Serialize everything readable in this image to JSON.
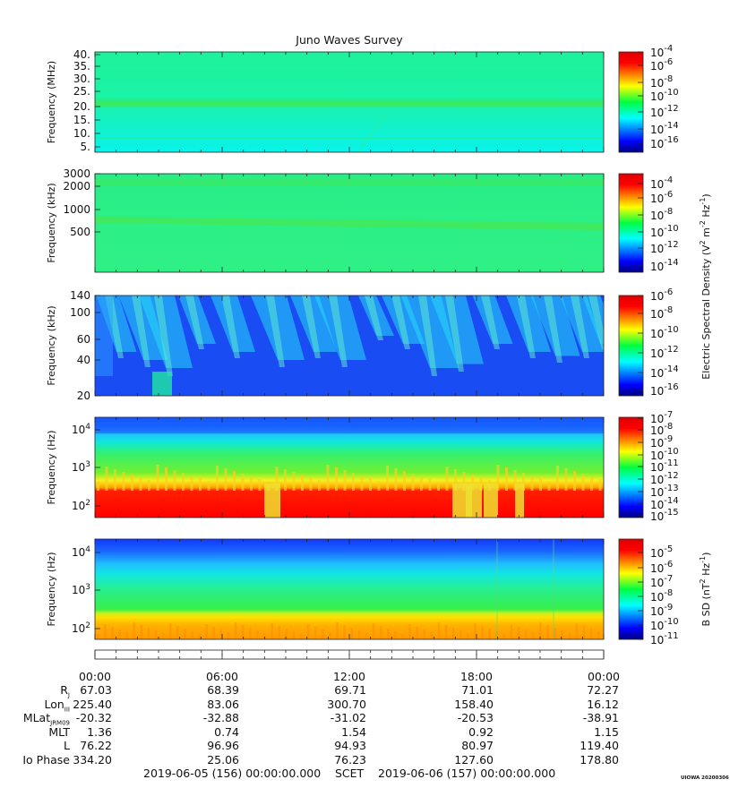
{
  "title": "Juno Waves Survey",
  "panels": [
    {
      "id": "p1",
      "ylabel": "Frequency (MHz)",
      "yticks": [
        "40.",
        "35.",
        "30.",
        "25.",
        "20.",
        "15.",
        "10.",
        "5."
      ],
      "cbar_ticks": [
        {
          "base": "10",
          "exp": "-4"
        },
        {
          "base": "10",
          "exp": "-6"
        },
        {
          "base": "10",
          "exp": "-8"
        },
        {
          "base": "10",
          "exp": "-10"
        },
        {
          "base": "10",
          "exp": "-12"
        },
        {
          "base": "10",
          "exp": "-14"
        },
        {
          "base": "10",
          "exp": "-16"
        }
      ]
    },
    {
      "id": "p2",
      "ylabel": "Frequency (kHz)",
      "yticks": [
        "3000",
        "2000",
        "1000",
        "500"
      ],
      "cbar_ticks": [
        {
          "base": "10",
          "exp": "-4"
        },
        {
          "base": "10",
          "exp": "-6"
        },
        {
          "base": "10",
          "exp": "-8"
        },
        {
          "base": "10",
          "exp": "-10"
        },
        {
          "base": "10",
          "exp": "-12"
        },
        {
          "base": "10",
          "exp": "-14"
        }
      ]
    },
    {
      "id": "p3",
      "ylabel": "Frequency (kHz)",
      "yticks": [
        "140",
        "100",
        "60",
        "40",
        "20"
      ],
      "cbar_ticks": [
        {
          "base": "10",
          "exp": "-6"
        },
        {
          "base": "10",
          "exp": "-8"
        },
        {
          "base": "10",
          "exp": "-10"
        },
        {
          "base": "10",
          "exp": "-12"
        },
        {
          "base": "10",
          "exp": "-14"
        },
        {
          "base": "10",
          "exp": "-16"
        }
      ]
    },
    {
      "id": "p4",
      "ylabel": "Frequency (Hz)",
      "yticks": [
        {
          "base": "10",
          "exp": "4"
        },
        {
          "base": "10",
          "exp": "3"
        },
        {
          "base": "10",
          "exp": "2"
        }
      ],
      "cbar_ticks": [
        {
          "base": "10",
          "exp": "-7"
        },
        {
          "base": "10",
          "exp": "-8"
        },
        {
          "base": "10",
          "exp": "-9"
        },
        {
          "base": "10",
          "exp": "-10"
        },
        {
          "base": "10",
          "exp": "-11"
        },
        {
          "base": "10",
          "exp": "-12"
        },
        {
          "base": "10",
          "exp": "-13"
        },
        {
          "base": "10",
          "exp": "-14"
        },
        {
          "base": "10",
          "exp": "-15"
        }
      ]
    },
    {
      "id": "p5",
      "ylabel": "Frequency (Hz)",
      "yticks": [
        {
          "base": "10",
          "exp": "4"
        },
        {
          "base": "10",
          "exp": "3"
        },
        {
          "base": "10",
          "exp": "2"
        }
      ],
      "cbar_ticks": [
        {
          "base": "10",
          "exp": "-5"
        },
        {
          "base": "10",
          "exp": "-6"
        },
        {
          "base": "10",
          "exp": "-7"
        },
        {
          "base": "10",
          "exp": "-8"
        },
        {
          "base": "10",
          "exp": "-9"
        },
        {
          "base": "10",
          "exp": "-10"
        },
        {
          "base": "10",
          "exp": "-11"
        }
      ]
    }
  ],
  "cbar_label_e": {
    "parts": [
      "Electric Spectral Density (V",
      "2",
      " m",
      "-2",
      " Hz",
      "-1",
      ")"
    ]
  },
  "cbar_label_b": {
    "parts": [
      "B SD (nT",
      "2",
      " Hz",
      "-1",
      ")"
    ]
  },
  "ephemeris": {
    "times": [
      "00:00",
      "06:00",
      "12:00",
      "18:00",
      "00:00"
    ],
    "rows": [
      {
        "label": "R",
        "sub": "J",
        "values": [
          "67.03",
          "68.39",
          "69.71",
          "71.01",
          "72.27"
        ]
      },
      {
        "label": "Lon",
        "sub": "III",
        "values": [
          "225.40",
          "83.06",
          "300.70",
          "158.40",
          "16.12"
        ]
      },
      {
        "label": "MLat",
        "sub": "JRM09",
        "values": [
          "-20.32",
          "-32.88",
          "-31.02",
          "-20.53",
          "-38.91"
        ]
      },
      {
        "label": "MLT",
        "sub": "",
        "values": [
          "1.36",
          "0.74",
          "1.54",
          "0.92",
          "1.15"
        ]
      },
      {
        "label": "L",
        "sub": "",
        "values": [
          "76.22",
          "96.96",
          "94.93",
          "80.97",
          "119.40"
        ]
      },
      {
        "label": "Io Phase",
        "sub": "",
        "values": [
          "334.20",
          "25.06",
          "76.23",
          "127.60",
          "178.80"
        ]
      }
    ]
  },
  "footer": {
    "start": "2019-06-05 (156) 00:00:00.000",
    "mid": "SCET",
    "end": "2019-06-06 (157) 00:00:00.000"
  },
  "stamp": "UIOWA 20200306",
  "chart_data": [
    {
      "type": "heatmap",
      "title": "Juno Waves Survey",
      "ylabel": "Frequency (MHz)",
      "ylim": [
        3,
        41
      ],
      "colorbar_range_log10": [
        -17,
        -4
      ],
      "features": [
        {
          "freq": 21,
          "intensity_log10": -12
        },
        {
          "freq": 8.5,
          "intensity_log10": -13
        }
      ],
      "background_log10": -13.5
    },
    {
      "type": "heatmap",
      "ylabel": "Frequency (kHz)",
      "yscale": "log",
      "ylim": [
        140,
        3000
      ],
      "colorbar_range_log10": [
        -15,
        -4
      ],
      "features": [
        {
          "freq": 2200,
          "intensity_log10": -10.5
        },
        {
          "freq": 700,
          "intensity_log10": -10
        }
      ],
      "background_log10": -11.5
    },
    {
      "type": "heatmap",
      "ylabel": "Frequency (kHz)",
      "ylim": [
        20,
        140
      ],
      "colorbar_range_log10": [
        -16,
        -6
      ],
      "background_log10": -14,
      "features": [
        {
          "freq": "40-140",
          "intensity_log10": -12.5,
          "note": "sporadic diagonal bursts"
        }
      ]
    },
    {
      "type": "heatmap",
      "ylabel": "Frequency (Hz)",
      "yscale": "log",
      "ylim": [
        50,
        20000
      ],
      "colorbar_range_log10": [
        -15,
        -7
      ],
      "profile": [
        {
          "freq": 80,
          "intensity_log10": -7.5
        },
        {
          "freq": 250,
          "intensity_log10": -9
        },
        {
          "freq": 1000,
          "intensity_log10": -11.5
        },
        {
          "freq": 4000,
          "intensity_log10": -13
        },
        {
          "freq": 15000,
          "intensity_log10": -14.5
        }
      ]
    },
    {
      "type": "heatmap",
      "ylabel": "Frequency (Hz)",
      "yscale": "log",
      "ylim": [
        50,
        25000
      ],
      "colorbar_range_log10": [
        -11,
        -5
      ],
      "profile": [
        {
          "freq": 60,
          "intensity_log10": -6
        },
        {
          "freq": 150,
          "intensity_log10": -7
        },
        {
          "freq": 300,
          "intensity_log10": -8.5
        },
        {
          "freq": 1500,
          "intensity_log10": -9.5
        },
        {
          "freq": 10000,
          "intensity_log10": -10.5
        }
      ]
    }
  ]
}
